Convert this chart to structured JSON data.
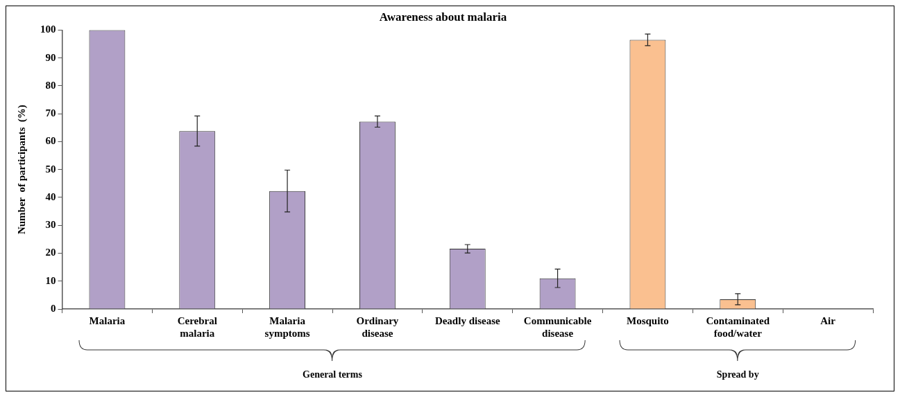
{
  "chart_data": {
    "type": "bar",
    "title": "Awareness about malaria",
    "ylabel": "Number  of participants  (%)",
    "categories": [
      "Malaria",
      "Cerebral malaria",
      "Malaria symptoms",
      "Ordinary disease",
      "Deadly disease",
      "Communicable disease",
      "Mosquito",
      "Contaminated food/water",
      "Air"
    ],
    "values": [
      100,
      63.8,
      42.3,
      67.2,
      21.6,
      11.0,
      96.5,
      3.5,
      0
    ],
    "colors": [
      "#b1a0c7",
      "#b1a0c7",
      "#b1a0c7",
      "#b1a0c7",
      "#b1a0c7",
      "#b1a0c7",
      "#fac090",
      "#fac090",
      "#fac090"
    ],
    "errors": [
      null,
      5.4,
      7.5,
      2.0,
      1.5,
      3.3,
      2.1,
      2.0,
      null
    ],
    "ylim": [
      0,
      100
    ],
    "yticks": [
      0,
      10,
      20,
      30,
      40,
      50,
      60,
      70,
      80,
      90,
      100
    ],
    "grid": false,
    "legend": false,
    "annotations": [
      "General terms",
      "Spread by"
    ]
  }
}
